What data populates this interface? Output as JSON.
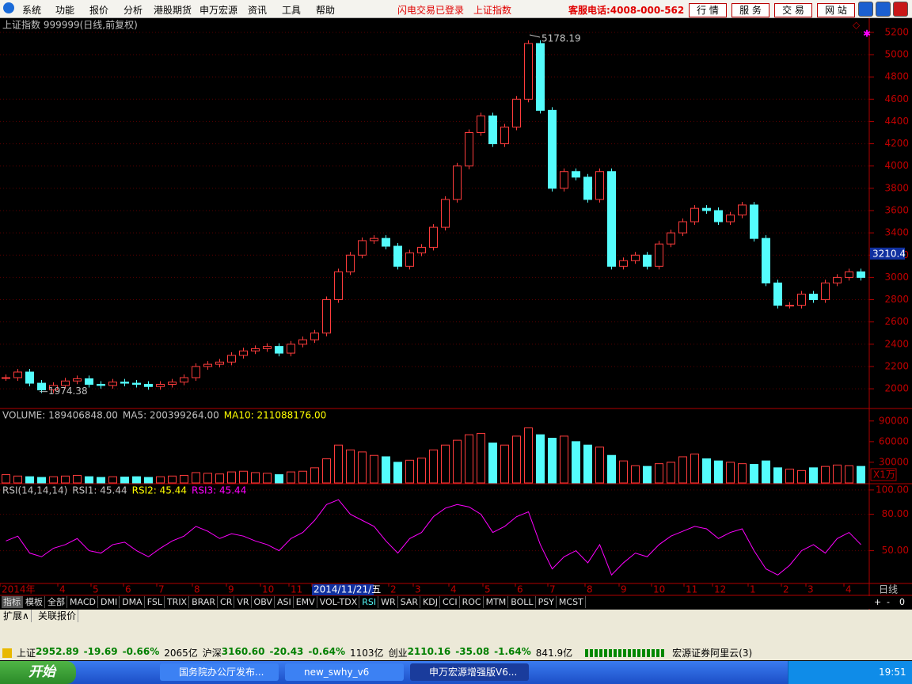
{
  "ui": {
    "menu": [
      "系统",
      "功能",
      "报价",
      "分析",
      "港股期货",
      "申万宏源",
      "资讯",
      "工具",
      "帮助"
    ],
    "status_red": [
      "闪电交易已登录",
      "上证指数"
    ],
    "hotline": "客服电话:4008-000-562",
    "buttons": [
      "行 情",
      "服 务",
      "交 易",
      "网 站"
    ],
    "tabs": [
      "指标",
      "模板",
      "全部",
      "MACD",
      "DMI",
      "DMA",
      "FSL",
      "TRIX",
      "BRAR",
      "CR",
      "VR",
      "OBV",
      "ASI",
      "EMV",
      "VOL-TDX",
      "RSI",
      "WR",
      "SAR",
      "KDJ",
      "CCI",
      "ROC",
      "MTM",
      "BOLL",
      "PSY",
      "MCST"
    ],
    "tab_controls": [
      "+",
      "-",
      "0"
    ],
    "bottom_tabs": [
      "扩展∧",
      "关联报价"
    ],
    "period": "日线",
    "time_labels": [
      "2014年",
      "4",
      "5",
      "6",
      "7",
      "8",
      "9",
      "10",
      "11",
      "2014/11/21/五",
      "2",
      "3",
      "4",
      "5",
      "6",
      "7",
      "8",
      "9",
      "10",
      "11",
      "12",
      "1",
      "2",
      "3",
      "4"
    ],
    "status_bar": {
      "indices": [
        {
          "name": "上证",
          "price": "2952.89",
          "change": "-19.69",
          "pct": "-0.66%",
          "amount": "2065亿"
        },
        {
          "name": "沪深",
          "price": "3160.60",
          "change": "-20.43",
          "pct": "-0.64%",
          "amount": "1103亿"
        },
        {
          "name": "创业",
          "price": "2110.16",
          "change": "-35.08",
          "pct": "-1.64%",
          "amount": "841.9亿"
        }
      ],
      "broker": "宏源证券阿里云(3)"
    },
    "taskbar": {
      "start": "开始",
      "items": [
        "国务院办公厅发布...",
        "new_swhy_v6",
        "申万宏源增强版V6..."
      ],
      "clock": "19:51"
    }
  },
  "chart_data": [
    {
      "type": "candlestick",
      "title": "上证指数 999999(日线,前复权)",
      "values": [
        2100,
        2150,
        2050,
        1990,
        2030,
        2070,
        2090,
        2040,
        2030,
        2060,
        2050,
        2040,
        2020,
        2040,
        2060,
        2100,
        2200,
        2220,
        2240,
        2300,
        2340,
        2360,
        2380,
        2320,
        2400,
        2440,
        2500,
        2800,
        3050,
        3200,
        3330,
        3350,
        3280,
        3100,
        3220,
        3270,
        3450,
        3700,
        4000,
        4300,
        4450,
        4200,
        4350,
        4600,
        5100,
        4500,
        3800,
        3950,
        3900,
        3700,
        3950,
        3100,
        3150,
        3200,
        3100,
        3300,
        3400,
        3500,
        3620,
        3600,
        3500,
        3560,
        3650,
        3350,
        2950,
        2750,
        2750,
        2850,
        2800,
        2950,
        3000,
        3050,
        3000
      ],
      "ylim": [
        1830,
        5320
      ],
      "yticks": [
        2000,
        2200,
        2400,
        2600,
        2800,
        3000,
        3200,
        3400,
        3600,
        3800,
        4000,
        4200,
        4400,
        4600,
        4800,
        5000,
        5200
      ],
      "grid": true,
      "high": 5178.19,
      "low": 1974.38,
      "last": 3210.4,
      "up_color": "#ff3c3c",
      "down_color": "#54fcfc"
    },
    {
      "type": "bar",
      "legend": [
        "VOLUME: 189406848.00",
        "MA5: 200399264.00",
        "MA10: 211088176.00"
      ],
      "unit": "X1万",
      "values": [
        12000,
        10000,
        9000,
        8000,
        9000,
        10000,
        11000,
        9000,
        8000,
        9000,
        8500,
        9000,
        8000,
        9000,
        10000,
        11000,
        15000,
        14000,
        13000,
        16000,
        17000,
        15000,
        14000,
        12000,
        16000,
        17000,
        22000,
        35000,
        55000,
        48000,
        45000,
        40000,
        38000,
        30000,
        33000,
        36000,
        48000,
        55000,
        62000,
        70000,
        72000,
        58000,
        55000,
        68000,
        80000,
        70000,
        65000,
        68000,
        60000,
        55000,
        52000,
        40000,
        32000,
        25000,
        24000,
        28000,
        30000,
        38000,
        42000,
        35000,
        32000,
        30000,
        28000,
        27000,
        32000,
        22000,
        20000,
        18000,
        22000,
        24000,
        26000,
        25000,
        24000
      ],
      "ylim": [
        0,
        107000
      ],
      "yticks": [
        30000,
        60000,
        90000
      ]
    },
    {
      "type": "line",
      "legend": [
        "RSI(14,14,14)",
        "RSI1: 45.44",
        "RSI2: 45.44",
        "RSI3: 45.44"
      ],
      "color": "#ff00ff",
      "values": [
        58,
        62,
        48,
        45,
        52,
        55,
        60,
        50,
        48,
        55,
        57,
        50,
        45,
        52,
        58,
        62,
        70,
        66,
        60,
        64,
        62,
        58,
        55,
        50,
        60,
        65,
        75,
        88,
        92,
        80,
        75,
        70,
        58,
        48,
        60,
        65,
        78,
        85,
        88,
        86,
        80,
        65,
        70,
        78,
        82,
        55,
        35,
        45,
        50,
        40,
        55,
        30,
        40,
        48,
        45,
        55,
        62,
        66,
        70,
        68,
        60,
        65,
        68,
        50,
        35,
        30,
        38,
        50,
        55,
        48,
        60,
        65,
        55
      ],
      "ylim": [
        23,
        104.5
      ],
      "yticks": [
        {
          "value": 50,
          "label": "50.00"
        },
        {
          "value": 80,
          "label": "80.00"
        },
        {
          "value": 100,
          "label": "100.00"
        }
      ]
    }
  ]
}
